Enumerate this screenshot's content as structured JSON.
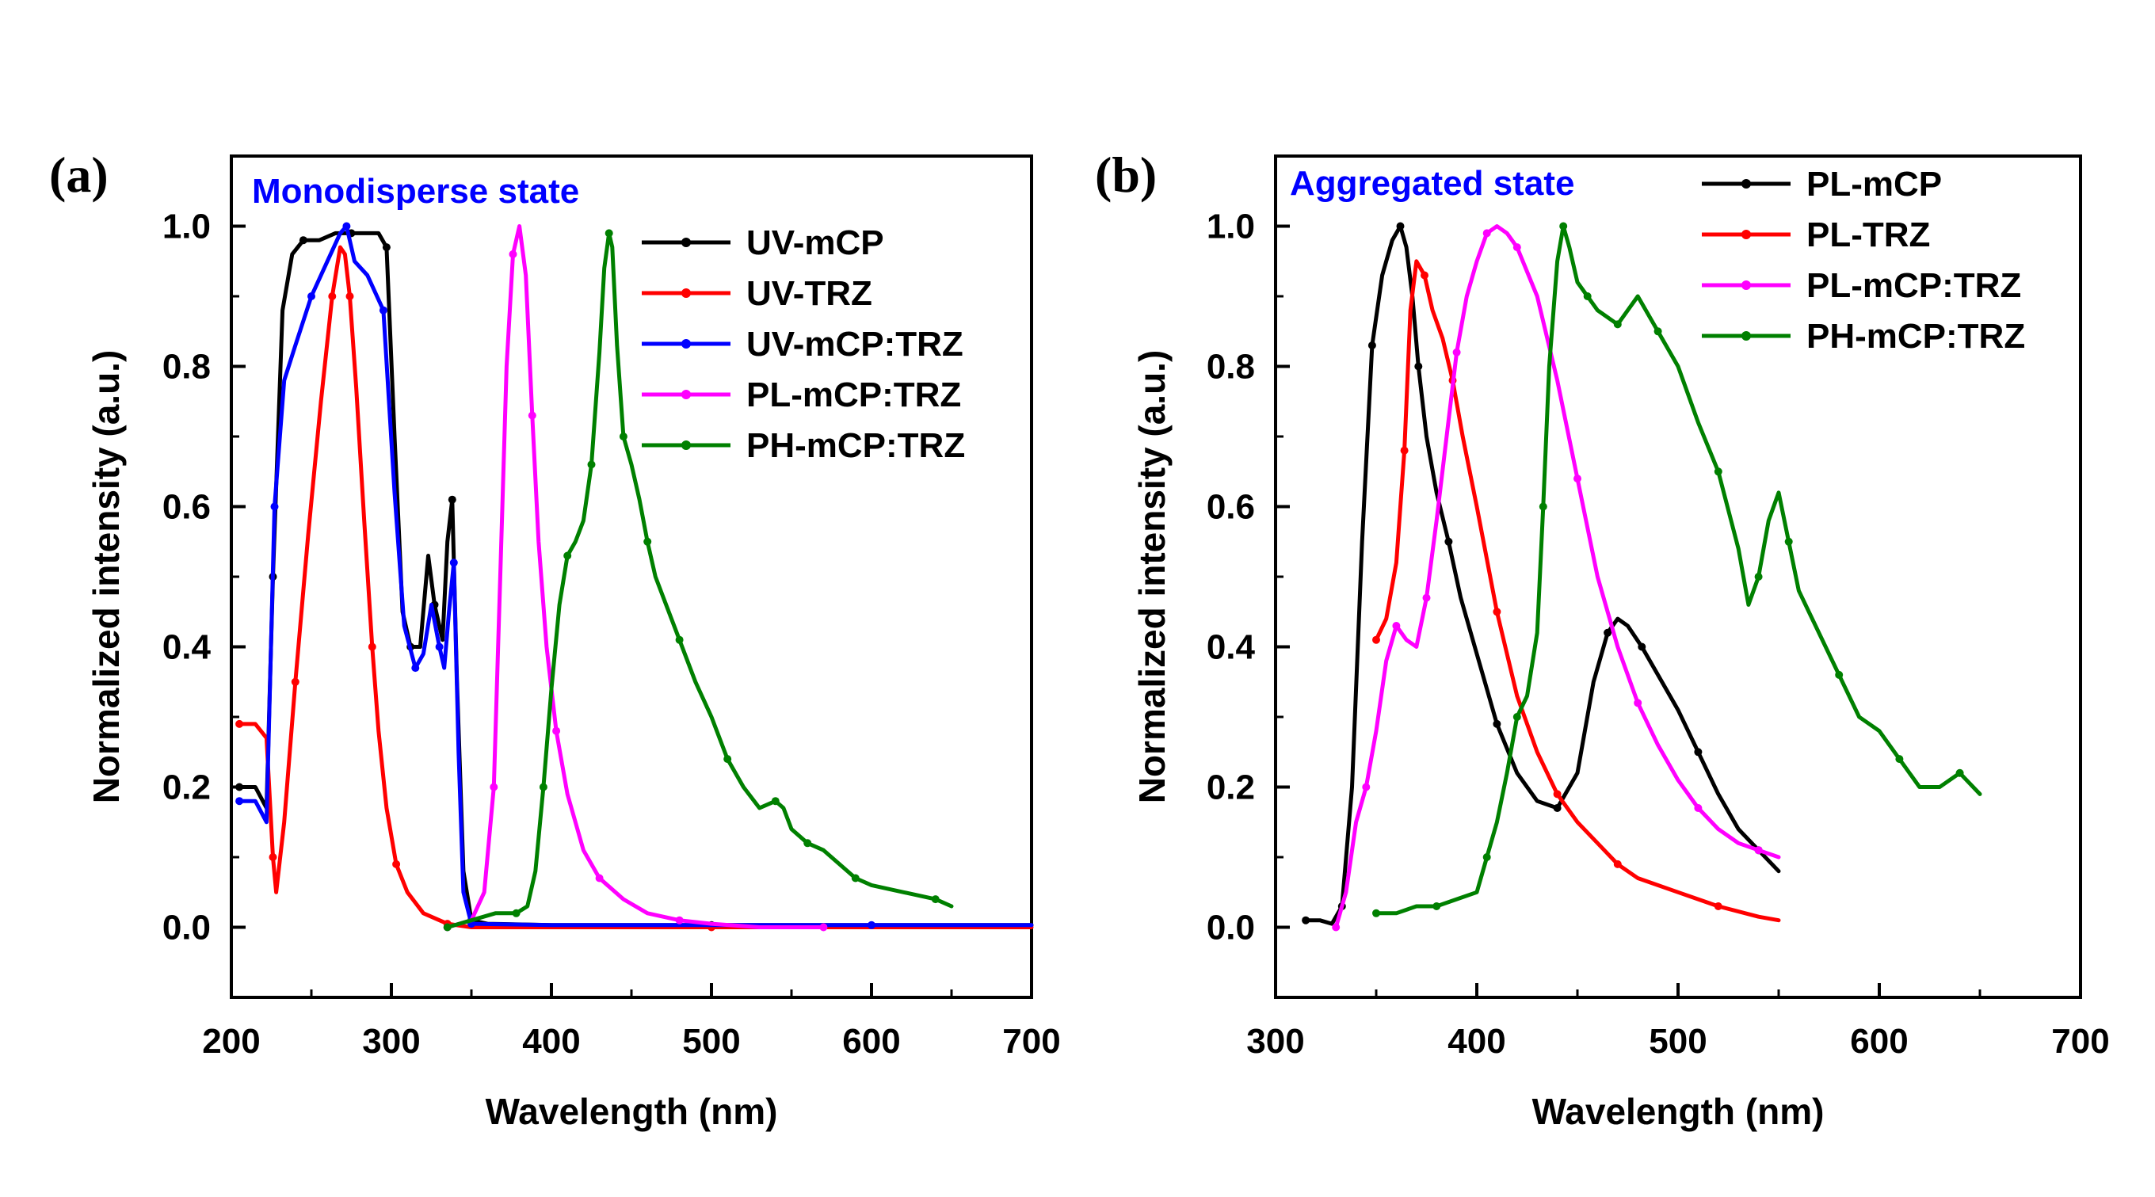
{
  "chart_data": [
    {
      "panel": "(a)",
      "type": "line",
      "title": "",
      "annotation": "Monodisperse state",
      "xlabel": "Wavelength (nm)",
      "ylabel": "Normalized intensity (a.u.)",
      "xlim": [
        200,
        700
      ],
      "ylim": [
        -0.1,
        1.1
      ],
      "xticks": [
        200,
        300,
        400,
        500,
        600,
        700
      ],
      "yticks": [
        0.0,
        0.2,
        0.4,
        0.6,
        0.8,
        1.0
      ],
      "ytick_labels": [
        "0.0",
        "0.2",
        "0.4",
        "0.6",
        "0.8",
        "1.0"
      ],
      "grid": false,
      "legend_position": "top-right",
      "series": [
        {
          "name": "UV-mCP",
          "color": "#000000",
          "x": [
            205,
            215,
            222,
            226,
            232,
            238,
            245,
            255,
            265,
            275,
            285,
            292,
            297,
            302,
            307,
            312,
            318,
            323,
            327,
            332,
            335,
            338,
            341,
            345,
            350,
            360,
            400,
            500,
            600,
            700
          ],
          "y": [
            0.2,
            0.2,
            0.17,
            0.5,
            0.88,
            0.96,
            0.98,
            0.98,
            0.99,
            0.99,
            0.99,
            0.99,
            0.97,
            0.7,
            0.45,
            0.4,
            0.4,
            0.53,
            0.46,
            0.41,
            0.55,
            0.61,
            0.35,
            0.08,
            0.01,
            0.005,
            0.003,
            0.003,
            0.003,
            0.003
          ]
        },
        {
          "name": "UV-TRZ",
          "color": "#ff0000",
          "x": [
            205,
            215,
            222,
            226,
            228,
            233,
            240,
            248,
            256,
            263,
            268,
            271,
            274,
            278,
            283,
            288,
            292,
            297,
            303,
            310,
            320,
            335,
            350,
            400,
            500,
            600,
            700
          ],
          "y": [
            0.29,
            0.29,
            0.27,
            0.1,
            0.05,
            0.15,
            0.35,
            0.56,
            0.75,
            0.9,
            0.97,
            0.96,
            0.9,
            0.77,
            0.58,
            0.4,
            0.28,
            0.17,
            0.09,
            0.05,
            0.02,
            0.005,
            0.0,
            0.0,
            0.0,
            0.0,
            0.0
          ]
        },
        {
          "name": "UV-mCP:TRZ",
          "color": "#0000ff",
          "x": [
            205,
            215,
            222,
            227,
            233,
            240,
            250,
            260,
            268,
            272,
            277,
            285,
            295,
            302,
            308,
            315,
            320,
            325,
            330,
            333,
            336,
            339,
            342,
            345,
            350,
            400,
            500,
            600,
            700
          ],
          "y": [
            0.18,
            0.18,
            0.15,
            0.6,
            0.78,
            0.83,
            0.9,
            0.95,
            0.99,
            1.0,
            0.95,
            0.93,
            0.88,
            0.62,
            0.43,
            0.37,
            0.39,
            0.46,
            0.4,
            0.37,
            0.45,
            0.52,
            0.25,
            0.05,
            0.005,
            0.003,
            0.003,
            0.003,
            0.003
          ]
        },
        {
          "name": "PL-mCP:TRZ",
          "color": "#ff00ff",
          "x": [
            335,
            350,
            358,
            364,
            368,
            372,
            376,
            380,
            384,
            388,
            392,
            397,
            403,
            410,
            420,
            430,
            445,
            460,
            480,
            500,
            530,
            570
          ],
          "y": [
            0.0,
            0.01,
            0.05,
            0.2,
            0.5,
            0.8,
            0.96,
            1.0,
            0.93,
            0.73,
            0.55,
            0.4,
            0.28,
            0.19,
            0.11,
            0.07,
            0.04,
            0.02,
            0.01,
            0.005,
            0.0,
            0.0
          ]
        },
        {
          "name": "PH-mCP:TRZ",
          "color": "#008000",
          "x": [
            335,
            350,
            365,
            378,
            385,
            390,
            395,
            400,
            405,
            410,
            415,
            420,
            425,
            430,
            433,
            436,
            438,
            441,
            445,
            450,
            455,
            460,
            465,
            470,
            480,
            490,
            500,
            510,
            520,
            530,
            540,
            545,
            550,
            560,
            570,
            580,
            590,
            600,
            620,
            640,
            650
          ],
          "y": [
            0.0,
            0.01,
            0.02,
            0.02,
            0.03,
            0.08,
            0.2,
            0.34,
            0.46,
            0.53,
            0.55,
            0.58,
            0.66,
            0.82,
            0.94,
            0.99,
            0.97,
            0.83,
            0.7,
            0.66,
            0.61,
            0.55,
            0.5,
            0.47,
            0.41,
            0.35,
            0.3,
            0.24,
            0.2,
            0.17,
            0.18,
            0.17,
            0.14,
            0.12,
            0.11,
            0.09,
            0.07,
            0.06,
            0.05,
            0.04,
            0.03
          ]
        }
      ]
    },
    {
      "panel": "(b)",
      "type": "line",
      "title": "",
      "annotation": "Aggregated state",
      "xlabel": "Wavelength (nm)",
      "ylabel": "Normalized intensity (a.u.)",
      "xlim": [
        300,
        700
      ],
      "ylim": [
        -0.1,
        1.1
      ],
      "xticks": [
        300,
        400,
        500,
        600,
        700
      ],
      "yticks": [
        0.0,
        0.2,
        0.4,
        0.6,
        0.8,
        1.0
      ],
      "ytick_labels": [
        "0.0",
        "0.2",
        "0.4",
        "0.6",
        "0.8",
        "1.0"
      ],
      "grid": false,
      "legend_position": "top-right",
      "series": [
        {
          "name": "PL-mCP",
          "color": "#000000",
          "x": [
            315,
            322,
            328,
            333,
            338,
            343,
            348,
            353,
            358,
            362,
            365,
            368,
            371,
            375,
            380,
            386,
            392,
            400,
            410,
            420,
            430,
            440,
            450,
            458,
            465,
            470,
            475,
            482,
            490,
            500,
            510,
            520,
            530,
            540,
            550
          ],
          "y": [
            0.01,
            0.01,
            0.005,
            0.03,
            0.2,
            0.55,
            0.83,
            0.93,
            0.98,
            1.0,
            0.97,
            0.9,
            0.8,
            0.7,
            0.62,
            0.55,
            0.47,
            0.39,
            0.29,
            0.22,
            0.18,
            0.17,
            0.22,
            0.35,
            0.42,
            0.44,
            0.43,
            0.4,
            0.36,
            0.31,
            0.25,
            0.19,
            0.14,
            0.11,
            0.08
          ]
        },
        {
          "name": "PL-TRZ",
          "color": "#ff0000",
          "x": [
            350,
            355,
            360,
            364,
            367,
            370,
            374,
            378,
            383,
            388,
            393,
            400,
            410,
            420,
            430,
            440,
            450,
            460,
            470,
            480,
            500,
            520,
            540,
            550
          ],
          "y": [
            0.41,
            0.44,
            0.52,
            0.68,
            0.88,
            0.95,
            0.93,
            0.88,
            0.84,
            0.78,
            0.7,
            0.6,
            0.45,
            0.33,
            0.25,
            0.19,
            0.15,
            0.12,
            0.09,
            0.07,
            0.05,
            0.03,
            0.015,
            0.01
          ]
        },
        {
          "name": "PL-mCP:TRZ",
          "color": "#ff00ff",
          "x": [
            330,
            335,
            340,
            345,
            350,
            355,
            360,
            365,
            370,
            375,
            380,
            385,
            390,
            395,
            400,
            405,
            410,
            415,
            420,
            430,
            440,
            450,
            460,
            470,
            480,
            490,
            500,
            510,
            520,
            530,
            540,
            550
          ],
          "y": [
            0.0,
            0.05,
            0.15,
            0.2,
            0.28,
            0.38,
            0.43,
            0.41,
            0.4,
            0.47,
            0.58,
            0.7,
            0.82,
            0.9,
            0.95,
            0.99,
            1.0,
            0.99,
            0.97,
            0.9,
            0.78,
            0.64,
            0.5,
            0.4,
            0.32,
            0.26,
            0.21,
            0.17,
            0.14,
            0.12,
            0.11,
            0.1
          ]
        },
        {
          "name": "PH-mCP:TRZ",
          "color": "#008000",
          "x": [
            350,
            360,
            370,
            380,
            390,
            400,
            405,
            410,
            415,
            420,
            425,
            430,
            433,
            436,
            440,
            443,
            446,
            450,
            455,
            460,
            465,
            470,
            475,
            480,
            490,
            500,
            510,
            520,
            530,
            535,
            540,
            545,
            550,
            555,
            560,
            570,
            580,
            590,
            600,
            610,
            620,
            630,
            640,
            650
          ],
          "y": [
            0.02,
            0.02,
            0.03,
            0.03,
            0.04,
            0.05,
            0.1,
            0.15,
            0.22,
            0.3,
            0.33,
            0.42,
            0.6,
            0.8,
            0.95,
            1.0,
            0.97,
            0.92,
            0.9,
            0.88,
            0.87,
            0.86,
            0.88,
            0.9,
            0.85,
            0.8,
            0.72,
            0.65,
            0.54,
            0.46,
            0.5,
            0.58,
            0.62,
            0.55,
            0.48,
            0.42,
            0.36,
            0.3,
            0.28,
            0.24,
            0.2,
            0.2,
            0.22,
            0.19
          ]
        }
      ]
    }
  ]
}
